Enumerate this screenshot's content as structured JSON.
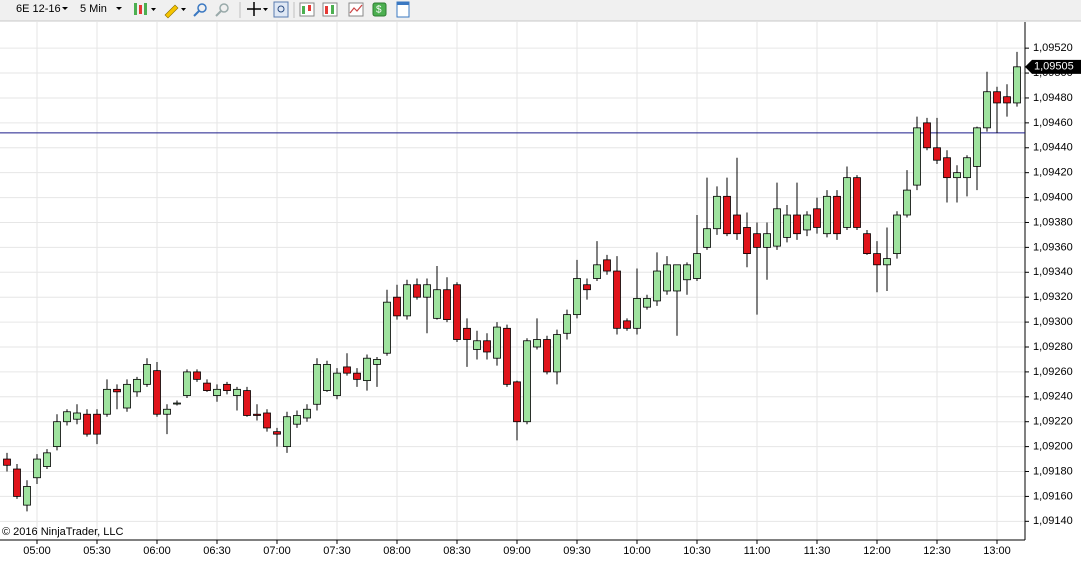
{
  "toolbar": {
    "instrument": "6E 12-16",
    "interval": "5 Min"
  },
  "chart_data": {
    "type": "candlestick",
    "watermark": "© 2016 NinjaTrader, LLC",
    "categories": [
      null,
      null,
      null,
      "05:00",
      null,
      null,
      null,
      null,
      null,
      "05:30",
      null,
      null,
      null,
      null,
      null,
      "06:00",
      null,
      null,
      null,
      null,
      null,
      "06:30",
      null,
      null,
      null,
      null,
      null,
      "07:00",
      null,
      null,
      null,
      null,
      null,
      "07:30",
      null,
      null,
      null,
      null,
      null,
      "08:00",
      null,
      null,
      null,
      null,
      null,
      "08:30",
      null,
      null,
      null,
      null,
      null,
      "09:00",
      null,
      null,
      null,
      null,
      null,
      "09:30",
      null,
      null,
      null,
      null,
      null,
      "10:00",
      null,
      null,
      null,
      null,
      null,
      "10:30",
      null,
      null,
      null,
      null,
      null,
      "11:00",
      null,
      null,
      null,
      null,
      null,
      "11:30",
      null,
      null,
      null,
      null,
      null,
      "12:00",
      null,
      null,
      null,
      null,
      null,
      "12:30",
      null,
      null,
      null,
      null,
      null,
      "13:00",
      null,
      null
    ],
    "open": [
      1.0919,
      1.09182,
      1.09153,
      1.09175,
      1.09184,
      1.092,
      1.0922,
      1.09222,
      1.09226,
      1.09226,
      1.09226,
      1.09246,
      1.09231,
      1.09244,
      1.0925,
      1.09261,
      1.09226,
      1.09235,
      1.09241,
      1.0926,
      1.09251,
      1.09241,
      1.0925,
      1.09241,
      1.09245,
      1.09226,
      1.09227,
      1.09212,
      1.092,
      1.09218,
      1.09223,
      1.09234,
      1.09245,
      1.09241,
      1.09264,
      1.09259,
      1.09253,
      1.09266,
      1.09275,
      1.0932,
      1.09305,
      1.0933,
      1.0932,
      1.09303,
      1.09326,
      1.0933,
      1.09295,
      1.09278,
      1.09285,
      1.09271,
      1.09295,
      1.09252,
      1.0922,
      1.0928,
      1.09286,
      1.0926,
      1.09291,
      1.09306,
      1.0933,
      1.09335,
      1.0935,
      1.09341,
      1.09301,
      1.09295,
      1.09312,
      1.09317,
      1.09325,
      1.09325,
      1.09334,
      1.09335,
      1.0936,
      1.09375,
      1.09401,
      1.09386,
      1.09376,
      1.09371,
      1.0936,
      1.09361,
      1.09368,
      1.09386,
      1.09374,
      1.09391,
      1.09371,
      1.09401,
      1.09376,
      1.09416,
      1.09371,
      1.09355,
      1.09346,
      1.09355,
      1.09386,
      1.0941,
      1.0946,
      1.0944,
      1.09432,
      1.09416,
      1.09416,
      1.09425,
      1.09456,
      1.09485,
      1.09481,
      1.09476
    ],
    "high": [
      1.09195,
      1.09186,
      1.09173,
      1.09194,
      1.09198,
      1.09226,
      1.0923,
      1.09234,
      1.0923,
      1.0923,
      1.09254,
      1.0925,
      1.09254,
      1.09256,
      1.09271,
      1.09268,
      1.09234,
      1.09237,
      1.09262,
      1.09262,
      1.09254,
      1.0925,
      1.09252,
      1.09248,
      1.09248,
      1.09234,
      1.0923,
      1.09215,
      1.09228,
      1.09229,
      1.09234,
      1.09271,
      1.09269,
      1.09263,
      1.09275,
      1.09263,
      1.09274,
      1.09272,
      1.09326,
      1.0933,
      1.09334,
      1.09335,
      1.09335,
      1.09345,
      1.09336,
      1.09332,
      1.09303,
      1.09293,
      1.09291,
      1.093,
      1.09298,
      1.09253,
      1.09287,
      1.09303,
      1.09289,
      1.09294,
      1.0931,
      1.0935,
      1.09335,
      1.09365,
      1.09354,
      1.09353,
      1.09303,
      1.09343,
      1.09322,
      1.09356,
      1.09353,
      1.09346,
      1.09348,
      1.09386,
      1.09416,
      1.09409,
      1.09416,
      1.09432,
      1.09388,
      1.0938,
      1.0938,
      1.09412,
      1.09394,
      1.09412,
      1.09389,
      1.094,
      1.09406,
      1.09406,
      1.09425,
      1.09418,
      1.09374,
      1.09365,
      1.09376,
      1.09389,
      1.09422,
      1.09465,
      1.09464,
      1.09464,
      1.09438,
      1.09426,
      1.09434,
      1.09457,
      1.09501,
      1.09489,
      1.09491,
      1.09517
    ],
    "low": [
      1.0918,
      1.09158,
      1.09148,
      1.0917,
      1.09182,
      1.09197,
      1.09217,
      1.09218,
      1.09208,
      1.09202,
      1.09224,
      1.0923,
      1.09228,
      1.0924,
      1.09248,
      1.09224,
      1.0921,
      1.09233,
      1.09239,
      1.09252,
      1.09244,
      1.09236,
      1.09242,
      1.09229,
      1.09224,
      1.09221,
      1.09212,
      1.092,
      1.09195,
      1.09215,
      1.0922,
      1.09229,
      1.09244,
      1.09238,
      1.09257,
      1.09248,
      1.09245,
      1.09248,
      1.09273,
      1.09302,
      1.09302,
      1.09318,
      1.09291,
      1.09302,
      1.093,
      1.09284,
      1.09264,
      1.0927,
      1.0927,
      1.09265,
      1.09248,
      1.09205,
      1.09218,
      1.09278,
      1.09258,
      1.0925,
      1.09286,
      1.09303,
      1.09318,
      1.09333,
      1.09338,
      1.0929,
      1.09293,
      1.0929,
      1.0931,
      1.09313,
      1.09322,
      1.09289,
      1.09322,
      1.09333,
      1.09358,
      1.0937,
      1.09369,
      1.09366,
      1.09344,
      1.09306,
      1.09334,
      1.09358,
      1.09364,
      1.09366,
      1.09369,
      1.09371,
      1.09368,
      1.09366,
      1.09374,
      1.09374,
      1.09354,
      1.09324,
      1.09325,
      1.09351,
      1.09384,
      1.09406,
      1.09438,
      1.09427,
      1.09396,
      1.09396,
      1.09401,
      1.09406,
      1.09453,
      1.09452,
      1.09465,
      1.09473
    ],
    "close": [
      1.09185,
      1.0916,
      1.09168,
      1.0919,
      1.09195,
      1.0922,
      1.09228,
      1.09227,
      1.0921,
      1.0921,
      1.09246,
      1.09244,
      1.0925,
      1.09254,
      1.09266,
      1.09226,
      1.0923,
      1.09235,
      1.0926,
      1.09254,
      1.09245,
      1.09246,
      1.09245,
      1.09246,
      1.09225,
      1.09225,
      1.09215,
      1.0921,
      1.09224,
      1.09225,
      1.0923,
      1.09266,
      1.09266,
      1.09259,
      1.09259,
      1.09254,
      1.09271,
      1.0927,
      1.09316,
      1.09305,
      1.0933,
      1.0932,
      1.0933,
      1.09326,
      1.09302,
      1.09286,
      1.09286,
      1.09285,
      1.09276,
      1.09296,
      1.0925,
      1.0922,
      1.09285,
      1.09286,
      1.0926,
      1.0929,
      1.09306,
      1.09335,
      1.09326,
      1.09346,
      1.09341,
      1.09295,
      1.09295,
      1.09319,
      1.09319,
      1.09341,
      1.09346,
      1.09346,
      1.09346,
      1.09355,
      1.09375,
      1.09401,
      1.09371,
      1.09371,
      1.09355,
      1.0936,
      1.09371,
      1.09391,
      1.09386,
      1.09371,
      1.09386,
      1.09376,
      1.09401,
      1.09371,
      1.09416,
      1.09376,
      1.09355,
      1.09346,
      1.09351,
      1.09386,
      1.09406,
      1.09456,
      1.0944,
      1.0943,
      1.09416,
      1.0942,
      1.09432,
      1.09456,
      1.09485,
      1.09476,
      1.09476,
      1.09505
    ],
    "up_color": "#9fe39f",
    "down_color": "#e0141b",
    "ylim": [
      1.09125,
      1.09541
    ],
    "yticks": [
      {
        "value": 1.0914,
        "label": "1,09140"
      },
      {
        "value": 1.0916,
        "label": "1,09160"
      },
      {
        "value": 1.0918,
        "label": "1,09180"
      },
      {
        "value": 1.092,
        "label": "1,09200"
      },
      {
        "value": 1.0922,
        "label": "1,09220"
      },
      {
        "value": 1.0924,
        "label": "1,09240"
      },
      {
        "value": 1.0926,
        "label": "1,09260"
      },
      {
        "value": 1.0928,
        "label": "1,09280"
      },
      {
        "value": 1.093,
        "label": "1,09300"
      },
      {
        "value": 1.0932,
        "label": "1,09320"
      },
      {
        "value": 1.0934,
        "label": "1,09340"
      },
      {
        "value": 1.0936,
        "label": "1,09360"
      },
      {
        "value": 1.0938,
        "label": "1,09380"
      },
      {
        "value": 1.094,
        "label": "1,09400"
      },
      {
        "value": 1.0942,
        "label": "1,09420"
      },
      {
        "value": 1.0944,
        "label": "1,09440"
      },
      {
        "value": 1.0946,
        "label": "1,09460"
      },
      {
        "value": 1.0948,
        "label": "1,09480"
      },
      {
        "value": 1.095,
        "label": "1,09500"
      },
      {
        "value": 1.0952,
        "label": "1,09520"
      }
    ],
    "grid": true,
    "hline": {
      "value": 1.09452,
      "color": "#1c1c8a"
    },
    "last_price": {
      "value": 1.09505,
      "label": "1,09505"
    }
  }
}
